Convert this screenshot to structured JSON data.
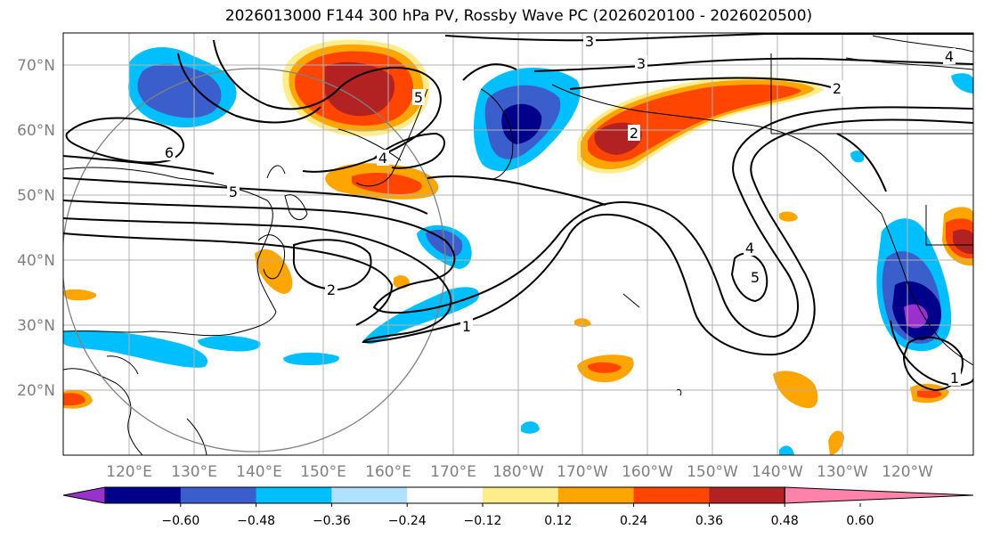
{
  "title": "2026013000 F144 300 hPa PV, Rossby Wave PC (2026020100 - 2026020500)",
  "chart_data": {
    "type": "map",
    "region": "North Pacific",
    "lon_ticks": [
      "120°E",
      "130°E",
      "140°E",
      "150°E",
      "160°E",
      "170°E",
      "180°W",
      "170°W",
      "160°W",
      "150°W",
      "140°W",
      "130°W",
      "120°W"
    ],
    "lat_ticks": [
      "70°N",
      "60°N",
      "50°N",
      "40°N",
      "30°N",
      "20°N"
    ],
    "contour_labels": [
      "3",
      "3",
      "4",
      "2",
      "5",
      "4",
      "6",
      "5",
      "2",
      "4",
      "5",
      "1",
      "1",
      "2"
    ],
    "colorbar": {
      "ticks": [
        "−0.60",
        "−0.48",
        "−0.36",
        "−0.24",
        "−0.12",
        "0.12",
        "0.24",
        "0.36",
        "0.48",
        "0.60"
      ],
      "colors": [
        "#9932cc",
        "#00008b",
        "#3a5fcd",
        "#00bfff",
        "#b0e2ff",
        "#ffffff",
        "#ffec8b",
        "#ffa500",
        "#ff4500",
        "#b22222",
        "#ff82ab"
      ]
    }
  }
}
